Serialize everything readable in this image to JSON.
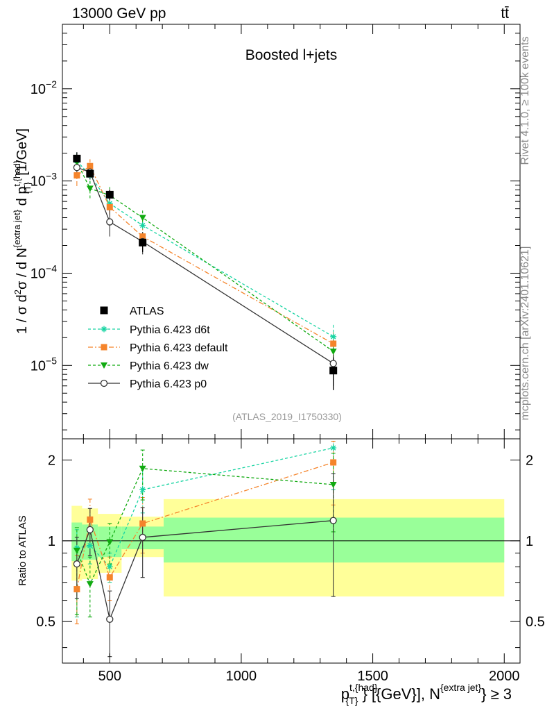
{
  "header": {
    "energy_label": "13000 GeV pp",
    "process_label": "tt̄",
    "rivet_label": "Rivet 4.1.0, ≥ 100k events",
    "mcplots_label": "mcplots.cern.ch [arXiv:2401.10621]"
  },
  "chart_data": [
    {
      "type": "scatter",
      "panel": "main",
      "title": "Boosted l+jets",
      "analysis_label": "(ATLAS_2019_I1750330)",
      "y_scale": "log",
      "xlim": [
        320,
        2060
      ],
      "ylim": [
        1.6e-06,
        0.05
      ],
      "ylabel": "1 / σ d²σ / d N^{extra jet} d p_T^{t,{had}} [1/GeV]",
      "yticks": [
        {
          "value": 1e-05,
          "base": "10",
          "exp": "−5"
        },
        {
          "value": 0.0001,
          "base": "10",
          "exp": "−4"
        },
        {
          "value": 0.001,
          "base": "10",
          "exp": "−3"
        },
        {
          "value": 0.01,
          "base": "10",
          "exp": "−2"
        }
      ],
      "data_series": {
        "name": "ATLAS",
        "color": "#000000",
        "x": [
          375,
          425,
          500,
          625,
          1350
        ],
        "xerr": [
          [
            355,
            395
          ],
          [
            395,
            455
          ],
          [
            455,
            545
          ],
          [
            545,
            705
          ],
          [
            705,
            2000
          ]
        ],
        "y": [
          0.00175,
          0.0012,
          0.00071,
          0.000215,
          8.8e-06
        ],
        "yerr_lo": [
          0.0015,
          0.00104,
          0.00062,
          0.00017,
          5.4e-06
        ],
        "yerr_hi": [
          0.00205,
          0.00138,
          0.00081,
          0.000265,
          1.22e-05
        ]
      },
      "series": [
        {
          "name": "Pythia 6.423 d6t",
          "color": "#17d4a2",
          "marker": "star",
          "dash": "4,3",
          "x": [
            375,
            425,
            500,
            625,
            1350
          ],
          "y": [
            0.00165,
            0.00115,
            0.00057,
            0.00033,
            2.05e-05
          ],
          "yerr_lo": [
            0.00132,
            0.00093,
            0.00047,
            0.00026,
            1.4e-05
          ],
          "yerr_hi": [
            0.00205,
            0.0014,
            0.00069,
            0.00041,
            2.8e-05
          ]
        },
        {
          "name": "Pythia 6.423 default",
          "color": "#f5842b",
          "marker": "square",
          "dash": "7,3,2,3",
          "x": [
            375,
            425,
            500,
            625,
            1350
          ],
          "y": [
            0.00115,
            0.00145,
            0.00052,
            0.00025,
            1.72e-05
          ],
          "yerr_lo": [
            0.00088,
            0.00122,
            0.00043,
            0.00019,
            1.2e-05
          ],
          "yerr_hi": [
            0.00148,
            0.00172,
            0.00063,
            0.00032,
            2.4e-05
          ]
        },
        {
          "name": "Pythia 6.423 dw",
          "color": "#11aa11",
          "marker": "triangle-down",
          "dash": "4,3",
          "x": [
            375,
            425,
            500,
            625,
            1350
          ],
          "y": [
            0.0016,
            0.00083,
            0.0007,
            0.0004,
            1.42e-05
          ],
          "yerr_lo": [
            0.00128,
            0.00065,
            0.00057,
            0.00031,
            9.5e-06
          ],
          "yerr_hi": [
            0.002,
            0.00104,
            0.00086,
            0.0005,
            2.05e-05
          ]
        },
        {
          "name": "Pythia 6.423 p0",
          "color": "#333333",
          "marker": "circle",
          "dash": "",
          "x": [
            375,
            425,
            500,
            625,
            1350
          ],
          "y": [
            0.0014,
            0.00125,
            0.00036,
            0.00022,
            1.05e-05
          ],
          "yerr_lo": [
            0.0011,
            0.00104,
            0.00025,
            0.00016,
            6e-06
          ],
          "yerr_hi": [
            0.00175,
            0.0015,
            0.00048,
            0.00028,
            1.55e-05
          ]
        }
      ]
    },
    {
      "type": "scatter",
      "panel": "ratio",
      "y_scale": "log",
      "xlim": [
        320,
        2060
      ],
      "ylim": [
        0.35,
        2.4
      ],
      "ylabel": "Ratio to ATLAS",
      "xlabel": "p_T^{t,{had}} [{GeV}], N^{extra jet} ≥ 3",
      "xticks": [
        500,
        1000,
        1500,
        2000
      ],
      "yticks": [
        {
          "value": 0.5,
          "label": "0.5"
        },
        {
          "value": 1,
          "label": "1"
        },
        {
          "value": 2,
          "label": "2"
        }
      ],
      "bands": [
        {
          "x0": 355,
          "x1": 395,
          "lo1": 0.84,
          "hi1": 1.17,
          "lo2": 0.71,
          "hi2": 1.35
        },
        {
          "x0": 395,
          "x1": 455,
          "lo1": 0.85,
          "hi1": 1.15,
          "lo2": 0.72,
          "hi2": 1.32
        },
        {
          "x0": 455,
          "x1": 545,
          "lo1": 0.87,
          "hi1": 1.13,
          "lo2": 0.76,
          "hi2": 1.26
        },
        {
          "x0": 545,
          "x1": 705,
          "lo1": 0.93,
          "hi1": 1.13,
          "lo2": 0.87,
          "hi2": 1.23
        },
        {
          "x0": 705,
          "x1": 2000,
          "lo1": 0.83,
          "hi1": 1.22,
          "lo2": 0.62,
          "hi2": 1.43
        }
      ],
      "series": [
        {
          "name": "Pythia 6.423 d6t",
          "color": "#17d4a2",
          "marker": "star",
          "dash": "4,3",
          "x": [
            375,
            425,
            500,
            625,
            1350
          ],
          "y": [
            0.94,
            0.96,
            0.8,
            1.55,
            2.22
          ],
          "yerr_lo": [
            0.52,
            0.82,
            0.7,
            1.27,
            1.55
          ],
          "yerr_hi": [
            1.1,
            1.11,
            0.9,
            1.88,
            2.35
          ]
        },
        {
          "name": "Pythia 6.423 default",
          "color": "#f5842b",
          "marker": "square",
          "dash": "7,3,2,3",
          "x": [
            375,
            425,
            500,
            625,
            1350
          ],
          "y": [
            0.66,
            1.2,
            0.73,
            1.16,
            1.96
          ],
          "yerr_lo": [
            0.49,
            0.97,
            0.6,
            0.9,
            1.36
          ],
          "yerr_hi": [
            0.88,
            1.43,
            0.87,
            1.45,
            2.35
          ]
        },
        {
          "name": "Pythia 6.423 dw",
          "color": "#11aa11",
          "marker": "triangle-down",
          "dash": "4,3",
          "x": [
            375,
            425,
            500,
            625,
            1350
          ],
          "y": [
            0.92,
            0.69,
            0.99,
            1.86,
            1.62
          ],
          "yerr_lo": [
            0.53,
            0.52,
            0.82,
            1.42,
            1.08
          ],
          "yerr_hi": [
            1.12,
            0.87,
            1.16,
            2.18,
            2.12
          ]
        },
        {
          "name": "Pythia 6.423 p0",
          "color": "#333333",
          "marker": "circle",
          "dash": "",
          "x": [
            375,
            425,
            500,
            625,
            1350
          ],
          "y": [
            0.82,
            1.1,
            0.51,
            1.03,
            1.19
          ],
          "yerr_lo": [
            0.61,
            0.88,
            0.37,
            0.73,
            0.62
          ],
          "yerr_hi": [
            1.03,
            1.32,
            0.65,
            1.33,
            1.78
          ]
        }
      ]
    }
  ]
}
